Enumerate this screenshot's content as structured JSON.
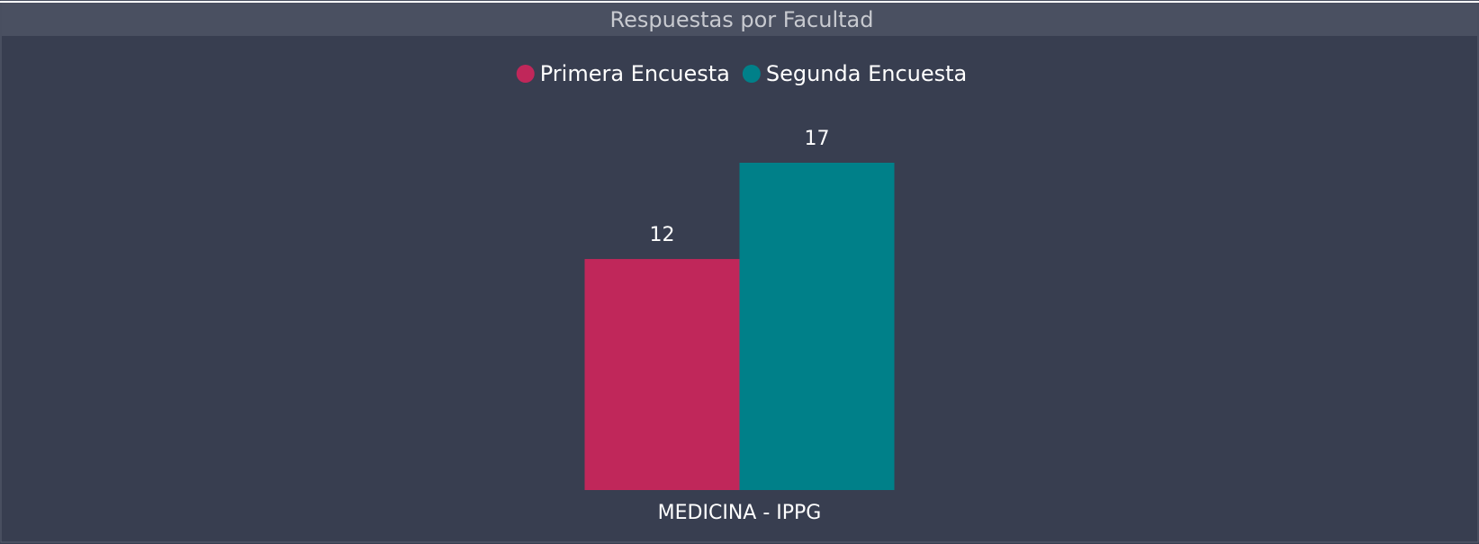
{
  "chart_data": {
    "type": "bar",
    "title": "Respuestas por Facultad",
    "categories": [
      "MEDICINA - IPPG"
    ],
    "series": [
      {
        "name": "Primera Encuesta",
        "color": "#c0275a",
        "values": [
          12
        ]
      },
      {
        "name": "Segunda Encuesta",
        "color": "#008089",
        "values": [
          17
        ]
      }
    ]
  }
}
